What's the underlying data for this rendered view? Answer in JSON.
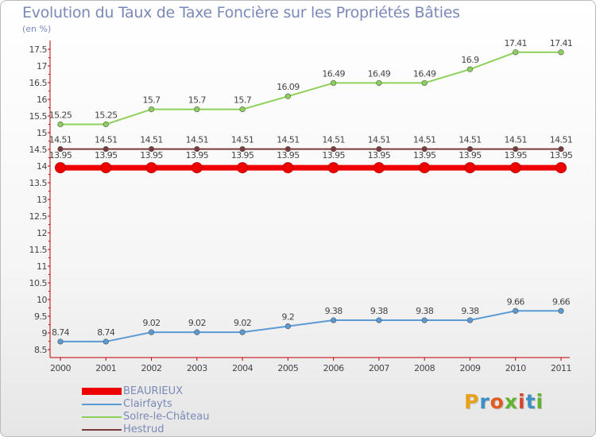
{
  "header": {
    "title": "Evolution du Taux de Taxe Foncière sur les Propriétés Bâties",
    "unit": "(en %)"
  },
  "logo": {
    "text": "Proxiti",
    "letter_colors": [
      "#e8a21a",
      "#3d8fc4",
      "#e35a1e",
      "#62b32e",
      "#d8452f",
      "#3d8fc4",
      "#62b32e"
    ]
  },
  "chart_data": {
    "type": "line",
    "title": "Evolution du Taux de Taxe Foncière sur les Propriétés Bâties",
    "ylabel": "(en %)",
    "xlabel": "",
    "x": [
      2000,
      2001,
      2002,
      2003,
      2004,
      2005,
      2006,
      2007,
      2008,
      2009,
      2010,
      2011
    ],
    "ylim": [
      8.5,
      17.5
    ],
    "yticks": [
      8.5,
      9,
      9.5,
      10,
      10.5,
      11,
      11.5,
      12,
      12.5,
      13,
      13.5,
      14,
      14.5,
      15,
      15.5,
      16,
      16.5,
      17,
      17.5
    ],
    "grid": false,
    "legend": "bottom-left",
    "series": [
      {
        "name": "BEAURIEUX",
        "color": "#ee0000",
        "emphasis": true,
        "values": [
          13.95,
          13.95,
          13.95,
          13.95,
          13.95,
          13.95,
          13.95,
          13.95,
          13.95,
          13.95,
          13.95,
          13.95
        ],
        "labels": [
          "13.95",
          "13.95",
          "13.95",
          "13.95",
          "13.95",
          "13.95",
          "13.95",
          "13.95",
          "13.95",
          "13.95",
          "13.95",
          "13.95"
        ]
      },
      {
        "name": "Clairfayts",
        "color": "#5b9bd5",
        "values": [
          8.74,
          8.74,
          9.02,
          9.02,
          9.02,
          9.2,
          9.38,
          9.38,
          9.38,
          9.38,
          9.66,
          9.66
        ],
        "labels": [
          "8.74",
          "8.74",
          "9.02",
          "9.02",
          "9.02",
          "9.2",
          "9.38",
          "9.38",
          "9.38",
          "9.38",
          "9.66",
          "9.66"
        ]
      },
      {
        "name": "Solre-le-Château",
        "color": "#8ed15a",
        "values": [
          15.25,
          15.25,
          15.7,
          15.7,
          15.7,
          16.09,
          16.49,
          16.49,
          16.49,
          16.9,
          17.41,
          17.41
        ],
        "labels": [
          "15.25",
          "15.25",
          "15.7",
          "15.7",
          "15.7",
          "16.09",
          "16.49",
          "16.49",
          "16.49",
          "16.9",
          "17.41",
          "17.41"
        ]
      },
      {
        "name": "Hestrud",
        "color": "#7b3b3b",
        "values": [
          14.51,
          14.51,
          14.51,
          14.51,
          14.51,
          14.51,
          14.51,
          14.51,
          14.51,
          14.51,
          14.51,
          14.51
        ],
        "labels": [
          "14.51",
          "14.51",
          "14.51",
          "14.51",
          "14.51",
          "14.51",
          "14.51",
          "14.51",
          "14.51",
          "14.51",
          "14.51",
          "14.51"
        ]
      }
    ]
  }
}
